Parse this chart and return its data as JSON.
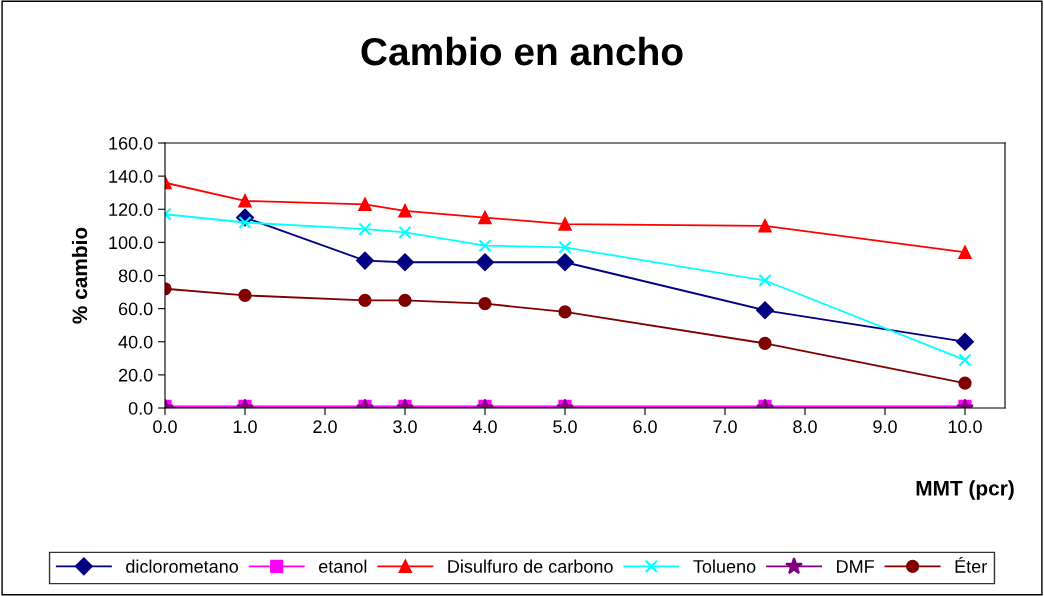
{
  "chart_data": {
    "type": "line",
    "title": "Cambio en ancho",
    "xlabel": "MMT (pcr)",
    "ylabel": "% cambio",
    "x": [
      0,
      1,
      2.5,
      3,
      4,
      5,
      7.5,
      10
    ],
    "series": [
      {
        "name": "diclorometano",
        "color": "#000080",
        "marker": "diamond",
        "values": [
          null,
          115,
          89,
          88,
          88,
          88,
          59,
          40
        ]
      },
      {
        "name": "etanol",
        "color": "#ff00ff",
        "marker": "square",
        "values": [
          1,
          1,
          1,
          1,
          1,
          1,
          1,
          1
        ]
      },
      {
        "name": "Disulfuro de carbono",
        "color": "#ff0000",
        "marker": "triangle",
        "values": [
          136,
          125,
          123,
          119,
          115,
          111,
          110,
          94
        ]
      },
      {
        "name": "Tolueno",
        "color": "#00ffff",
        "marker": "cross",
        "values": [
          117,
          112,
          108,
          106,
          98,
          97,
          77,
          29
        ]
      },
      {
        "name": "DMF",
        "color": "#800080",
        "marker": "star",
        "values": [
          0,
          0,
          0,
          0,
          0,
          0,
          0,
          0
        ]
      },
      {
        "name": "Éter",
        "color": "#800000",
        "marker": "circle",
        "values": [
          72,
          68,
          65,
          65,
          63,
          58,
          39,
          15
        ]
      }
    ],
    "xlim": [
      0,
      10.5
    ],
    "xticks": [
      {
        "value": 0,
        "label": "0.0"
      },
      {
        "value": 1,
        "label": "1.0"
      },
      {
        "value": 2,
        "label": "2.0"
      },
      {
        "value": 3,
        "label": "3.0"
      },
      {
        "value": 4,
        "label": "4.0"
      },
      {
        "value": 5,
        "label": "5.0"
      },
      {
        "value": 6,
        "label": "6.0"
      },
      {
        "value": 7,
        "label": "7.0"
      },
      {
        "value": 8,
        "label": "8.0"
      },
      {
        "value": 9,
        "label": "9.0"
      },
      {
        "value": 10,
        "label": "10.0"
      }
    ],
    "ylim": [
      0,
      160
    ],
    "yticks": [
      {
        "value": 0,
        "label": "0.0"
      },
      {
        "value": 20,
        "label": "20.0"
      },
      {
        "value": 40,
        "label": "40.0"
      },
      {
        "value": 60,
        "label": "60.0"
      },
      {
        "value": 80,
        "label": "80.0"
      },
      {
        "value": 100,
        "label": "100.0"
      },
      {
        "value": 120,
        "label": "120.0"
      },
      {
        "value": 140,
        "label": "140.0"
      },
      {
        "value": 160,
        "label": "160.0"
      }
    ],
    "grid": false,
    "legend": "bottom",
    "line_style": "solid"
  }
}
